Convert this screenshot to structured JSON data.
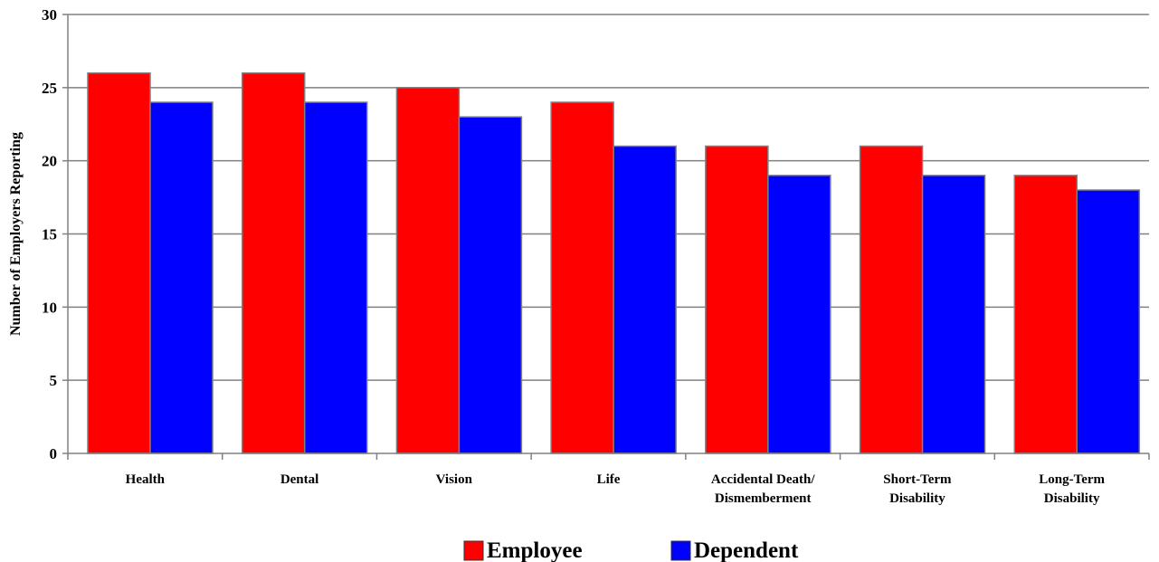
{
  "chart_data": {
    "type": "bar",
    "categories": [
      [
        "Health"
      ],
      [
        "Dental"
      ],
      [
        "Vision"
      ],
      [
        "Life"
      ],
      [
        "Accidental Death/",
        "Dismemberment"
      ],
      [
        "Short-Term",
        "Disability"
      ],
      [
        "Long-Term",
        "Disability"
      ]
    ],
    "series": [
      {
        "name": "Employee",
        "color": "#ff0000",
        "values": [
          26,
          26,
          25,
          24,
          21,
          21,
          19
        ]
      },
      {
        "name": "Dependent",
        "color": "#0000ff",
        "values": [
          24,
          24,
          23,
          21,
          19,
          19,
          18
        ]
      }
    ],
    "ylabel": "Number of Employers Reporting",
    "xlabel": "",
    "title": "",
    "ylim": [
      0,
      30
    ],
    "yticks": [
      0,
      5,
      10,
      15,
      20,
      25,
      30
    ],
    "grid": true,
    "legend_position": "bottom"
  }
}
